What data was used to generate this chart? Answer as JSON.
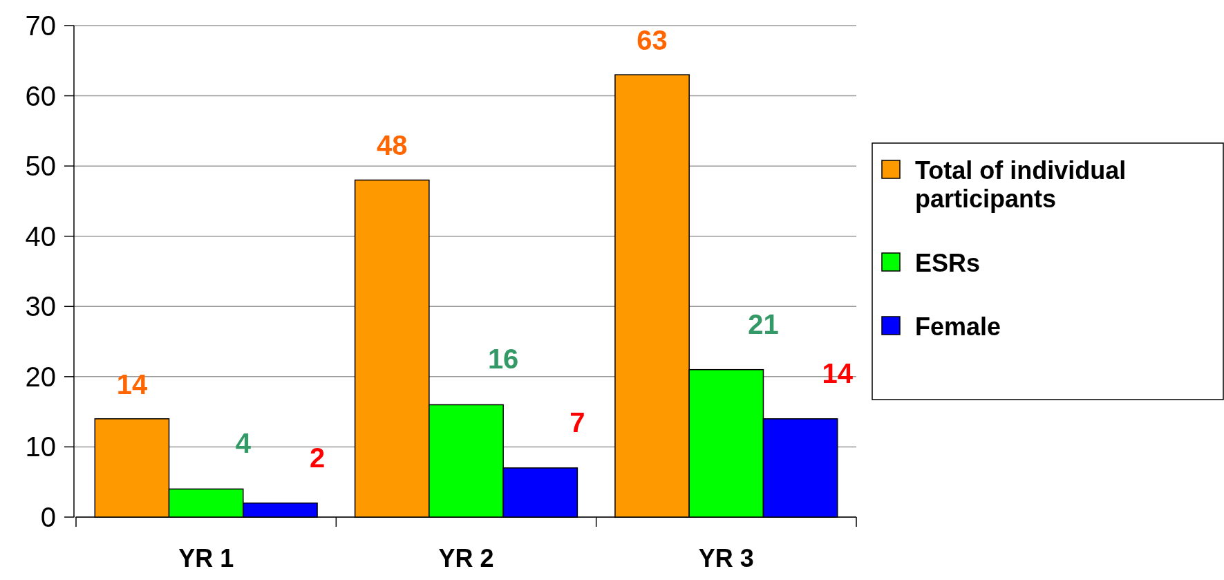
{
  "chart_data": {
    "type": "bar",
    "categories": [
      "YR 1",
      "YR 2",
      "YR 3"
    ],
    "series": [
      {
        "name": "Total of individual participants",
        "color": "#ff9900",
        "values": [
          14,
          48,
          63
        ]
      },
      {
        "name": "ESRs",
        "color": "#00ff00",
        "values": [
          4,
          16,
          21
        ]
      },
      {
        "name": "Female",
        "color": "#0000ff",
        "values": [
          2,
          7,
          14
        ]
      }
    ],
    "ylim": [
      0,
      70
    ],
    "yticks": [
      0,
      10,
      20,
      30,
      40,
      50,
      60,
      70
    ],
    "grid": "y",
    "legend": "right",
    "data_labels": true
  }
}
